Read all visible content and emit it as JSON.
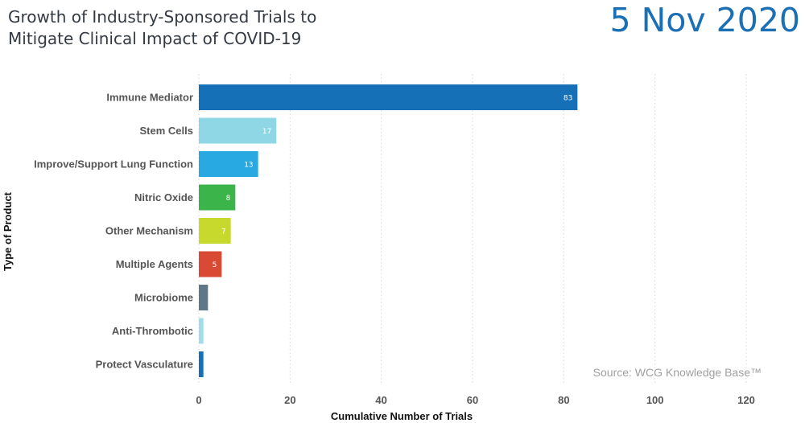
{
  "header": {
    "title_line1": "Growth of Industry-Sponsored Trials to",
    "title_line2": "Mitigate Clinical Impact of COVID-19",
    "date": "5 Nov 2020"
  },
  "source": "Source: WCG Knowledge Base™",
  "chart_data": {
    "type": "bar",
    "orientation": "horizontal",
    "title": "Growth of Industry-Sponsored Trials to Mitigate Clinical Impact of COVID-19",
    "xlabel": "Cumulative Number of Trials",
    "ylabel": "Type of Product",
    "categories": [
      "Immune Mediator",
      "Stem Cells",
      "Improve/Support Lung Function",
      "Nitric Oxide",
      "Other Mechanism",
      "Multiple Agents",
      "Microbiome",
      "Anti-Thrombotic",
      "Protect Vasculature"
    ],
    "values": [
      83,
      17,
      13,
      8,
      7,
      5,
      2,
      1,
      1
    ],
    "data_labels": [
      "83",
      "17",
      "13",
      "8",
      "7",
      "5",
      "",
      "",
      ""
    ],
    "colors": [
      "#1570b8",
      "#8fd7e4",
      "#29a9e1",
      "#3bb54a",
      "#c8d92e",
      "#d94a35",
      "#5e7887",
      "#9fdde8",
      "#1570b8"
    ],
    "xlim": [
      0,
      125
    ],
    "xticks": [
      0,
      20,
      40,
      60,
      80,
      100,
      120
    ],
    "grid": true
  }
}
